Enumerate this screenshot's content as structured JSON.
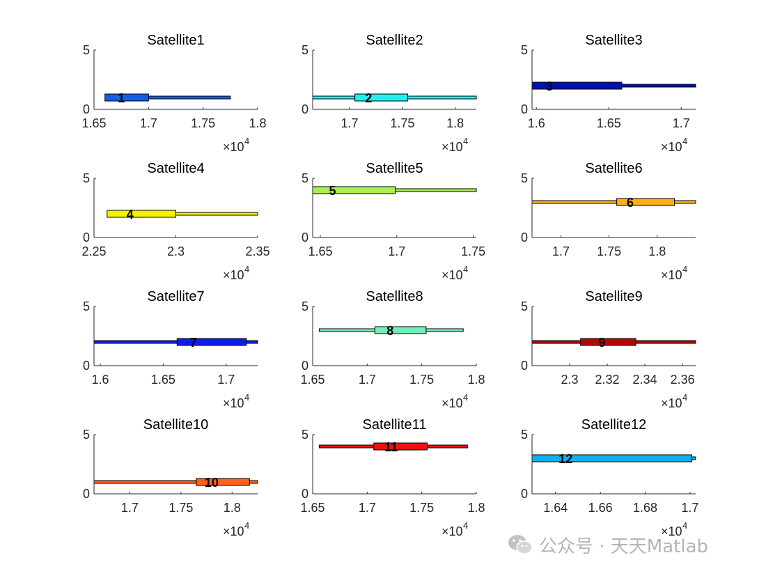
{
  "chart_data": {
    "type": "gantt-bar",
    "x_exponent_label": "×10",
    "x_exponent_power": "4",
    "y_range": [
      0,
      5
    ],
    "y_ticks": [
      0,
      5
    ],
    "panels": [
      {
        "title": "Satellite1",
        "xlim": [
          1.65,
          1.8
        ],
        "x_ticks": [
          1.65,
          1.7,
          1.75,
          1.8
        ],
        "x_tick_labels": [
          "1.65",
          "1.7",
          "1.75",
          "1.8"
        ],
        "label": "1",
        "y": 1,
        "color": "#1060e8",
        "thin": [
          1.7,
          1.775
        ],
        "thick": [
          1.66,
          1.7
        ],
        "label_x": 1.675
      },
      {
        "title": "Satellite2",
        "xlim": [
          1.665,
          1.82
        ],
        "x_ticks": [
          1.7,
          1.75,
          1.8
        ],
        "x_tick_labels": [
          "1.7",
          "1.75",
          "1.8"
        ],
        "label": "2",
        "y": 1,
        "color": "#20f0f0",
        "thin": [
          1.665,
          1.82
        ],
        "thick": [
          1.705,
          1.755
        ],
        "label_x": 1.718
      },
      {
        "title": "Satellite3",
        "xlim": [
          1.597,
          1.71
        ],
        "x_ticks": [
          1.6,
          1.65,
          1.7
        ],
        "x_tick_labels": [
          "1.6",
          "1.65",
          "1.7"
        ],
        "label": "3",
        "y": 2,
        "color": "#0012a8",
        "thin": [
          1.597,
          1.71
        ],
        "thick": [
          1.597,
          1.659
        ],
        "label_x": 1.609
      },
      {
        "title": "Satellite4",
        "xlim": [
          2.25,
          2.35
        ],
        "x_ticks": [
          2.25,
          2.3,
          2.35
        ],
        "x_tick_labels": [
          "2.25",
          "2.3",
          "2.35"
        ],
        "label": "4",
        "y": 2,
        "color": "#f5f000",
        "thin": [
          2.3,
          2.35
        ],
        "thick": [
          2.258,
          2.3
        ],
        "label_x": 2.272
      },
      {
        "title": "Satellite5",
        "xlim": [
          1.645,
          1.752
        ],
        "x_ticks": [
          1.65,
          1.7,
          1.75
        ],
        "x_tick_labels": [
          "1.65",
          "1.7",
          "1.75"
        ],
        "label": "5",
        "y": 4,
        "color": "#a8f050",
        "thin": [
          1.645,
          1.752
        ],
        "thick": [
          1.645,
          1.699
        ],
        "label_x": 1.658
      },
      {
        "title": "Satellite6",
        "xlim": [
          1.67,
          1.84
        ],
        "x_ticks": [
          1.7,
          1.75,
          1.8
        ],
        "x_tick_labels": [
          "1.7",
          "1.75",
          "1.8"
        ],
        "label": "6",
        "y": 3,
        "color": "#ffae1a",
        "thin": [
          1.67,
          1.84
        ],
        "thick": [
          1.758,
          1.818
        ],
        "label_x": 1.772
      },
      {
        "title": "Satellite7",
        "xlim": [
          1.595,
          1.725
        ],
        "x_ticks": [
          1.6,
          1.65,
          1.7
        ],
        "x_tick_labels": [
          "1.6",
          "1.65",
          "1.7"
        ],
        "label": "7",
        "y": 2,
        "color": "#0c1ee8",
        "thin": [
          1.595,
          1.725
        ],
        "thick": [
          1.661,
          1.716
        ],
        "label_x": 1.674
      },
      {
        "title": "Satellite8",
        "xlim": [
          1.65,
          1.8
        ],
        "x_ticks": [
          1.65,
          1.7,
          1.75,
          1.8
        ],
        "x_tick_labels": [
          "1.65",
          "1.7",
          "1.75",
          "1.8"
        ],
        "label": "8",
        "y": 3,
        "color": "#70f0b8",
        "thin": [
          1.656,
          1.788
        ],
        "thick": [
          1.707,
          1.754
        ],
        "label_x": 1.721
      },
      {
        "title": "Satellite9",
        "xlim": [
          2.28,
          2.367
        ],
        "x_ticks": [
          2.3,
          2.32,
          2.34,
          2.36
        ],
        "x_tick_labels": [
          "2.3",
          "2.32",
          "2.34",
          "2.36"
        ],
        "label": "9",
        "y": 2,
        "color": "#b20808",
        "thin": [
          2.28,
          2.367
        ],
        "thick": [
          2.3058,
          2.3352
        ],
        "label_x": 2.3172
      },
      {
        "title": "Satellite10",
        "xlim": [
          1.665,
          1.825
        ],
        "x_ticks": [
          1.7,
          1.75,
          1.8
        ],
        "x_tick_labels": [
          "1.7",
          "1.75",
          "1.8"
        ],
        "label": "10",
        "y": 1,
        "color": "#ff6020",
        "thin": [
          1.665,
          1.825
        ],
        "thick": [
          1.765,
          1.817
        ],
        "label_x": 1.78
      },
      {
        "title": "Satellite11",
        "xlim": [
          1.65,
          1.8
        ],
        "x_ticks": [
          1.65,
          1.7,
          1.75,
          1.8
        ],
        "x_tick_labels": [
          "1.65",
          "1.7",
          "1.75",
          "1.8"
        ],
        "label": "11",
        "y": 4,
        "color": "#f01010",
        "thin": [
          1.656,
          1.792
        ],
        "thick": [
          1.706,
          1.755
        ],
        "label_x": 1.722
      },
      {
        "title": "Satellite12",
        "xlim": [
          1.6295,
          1.7025
        ],
        "x_ticks": [
          1.64,
          1.66,
          1.68,
          1.7
        ],
        "x_tick_labels": [
          "1.64",
          "1.66",
          "1.68",
          "1.7"
        ],
        "label": "12",
        "y": 3,
        "color": "#10b0f0",
        "thin": [
          1.6295,
          1.7025
        ],
        "thick": [
          1.6295,
          1.7008
        ],
        "label_x": 1.6445
      }
    ]
  },
  "watermark": {
    "text": "公众号 · 天天Matlab"
  }
}
